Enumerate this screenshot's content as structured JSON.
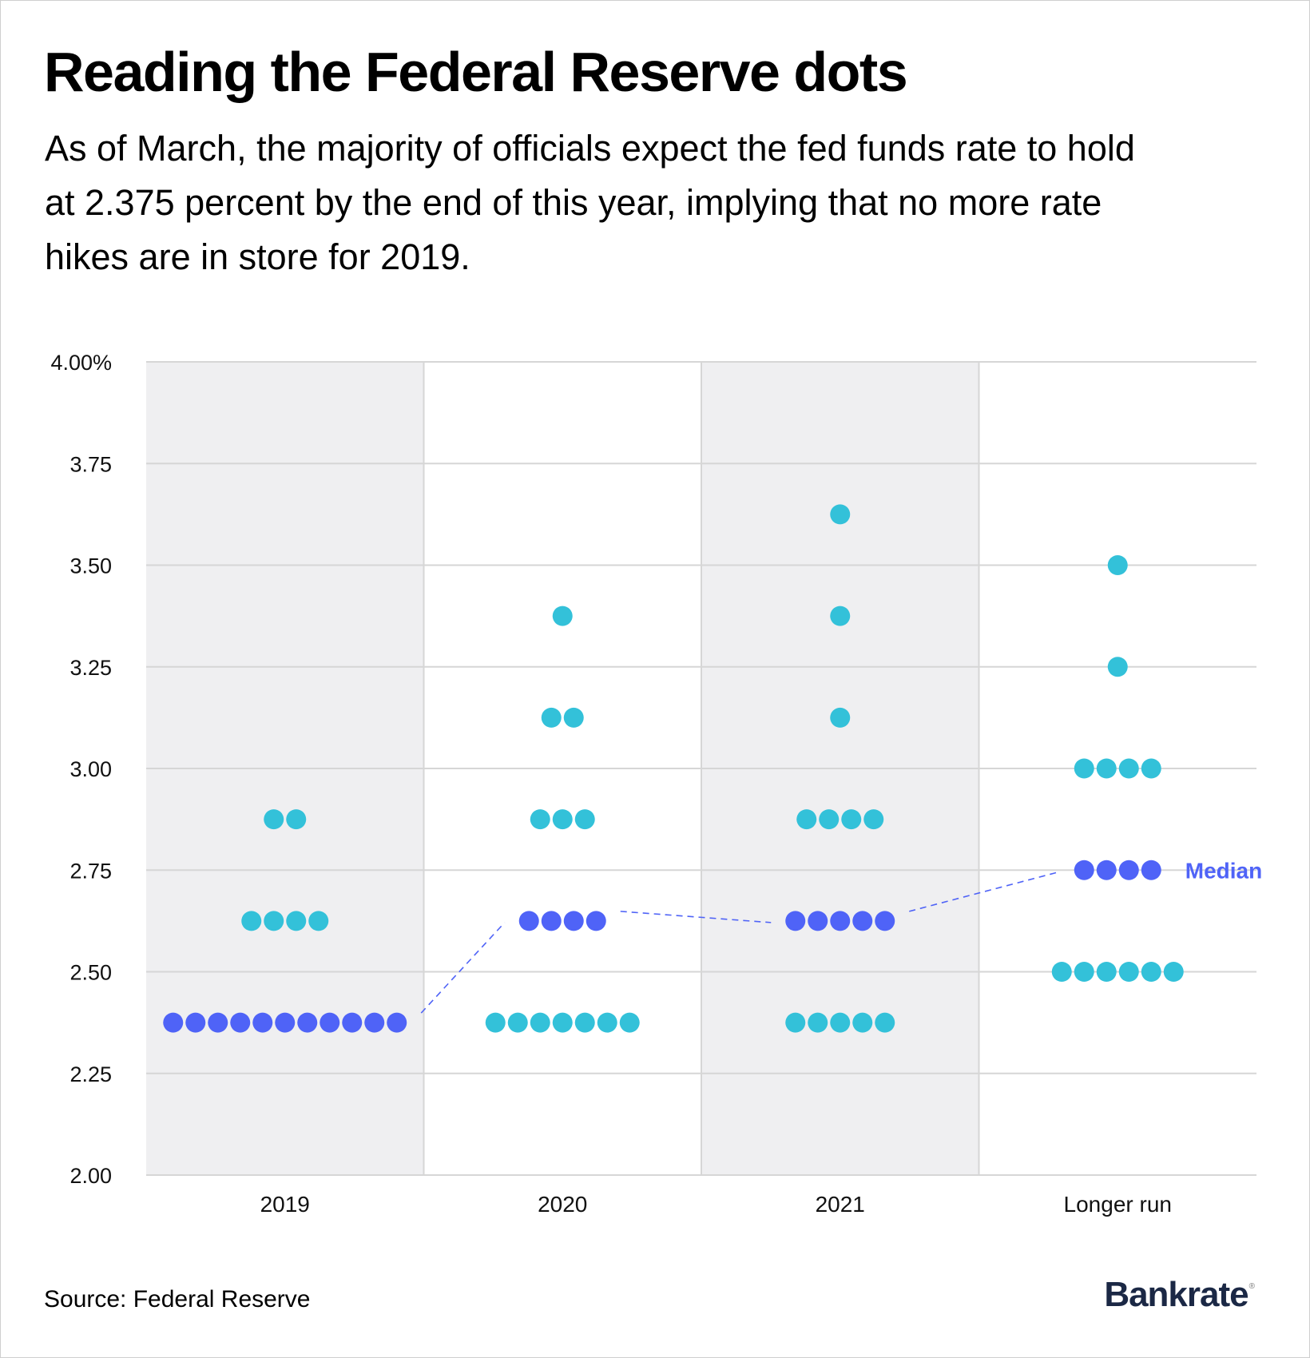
{
  "header": {
    "title": "Reading the Federal Reserve dots",
    "subtitle_lines": [
      "As of March, the majority of officials expect the fed funds rate to hold",
      "at 2.375 percent by the end of this year, implying that no more rate",
      "hikes are in store for 2019."
    ]
  },
  "footer": {
    "source": "Source: Federal Reserve",
    "logo": "Bankrate",
    "logo_mark": "®"
  },
  "colors": {
    "median_dot": "#4f63f7",
    "other_dot": "#33c1d9",
    "shaded_band": "#efeff1",
    "gridline": "#d6d6d6",
    "median_text": "#4f63f7"
  },
  "chart_data": {
    "type": "scatter",
    "subtype": "dot-plot",
    "title": "Reading the Federal Reserve dots",
    "xlabel": "",
    "ylabel": "",
    "ylim": [
      2.0,
      4.0
    ],
    "y_ticks": [
      2.0,
      2.25,
      2.5,
      2.75,
      3.0,
      3.25,
      3.5,
      3.75,
      4.0
    ],
    "y_tick_labels": [
      "2.00",
      "2.25",
      "2.50",
      "2.75",
      "3.00",
      "3.25",
      "3.50",
      "3.75",
      "4.00%"
    ],
    "grid": true,
    "categories": [
      "2019",
      "2020",
      "2021",
      "Longer run"
    ],
    "shaded_categories": [
      "2019",
      "2021"
    ],
    "series": [
      {
        "category": "2019",
        "median": 2.375,
        "rows": [
          {
            "rate": 2.875,
            "count": 2
          },
          {
            "rate": 2.625,
            "count": 4
          },
          {
            "rate": 2.375,
            "count": 11
          }
        ]
      },
      {
        "category": "2020",
        "median": 2.625,
        "rows": [
          {
            "rate": 3.375,
            "count": 1
          },
          {
            "rate": 3.125,
            "count": 2
          },
          {
            "rate": 2.875,
            "count": 3
          },
          {
            "rate": 2.625,
            "count": 4
          },
          {
            "rate": 2.375,
            "count": 7
          }
        ]
      },
      {
        "category": "2021",
        "median": 2.625,
        "rows": [
          {
            "rate": 3.625,
            "count": 1
          },
          {
            "rate": 3.375,
            "count": 1
          },
          {
            "rate": 3.125,
            "count": 1
          },
          {
            "rate": 2.875,
            "count": 4
          },
          {
            "rate": 2.625,
            "count": 5
          },
          {
            "rate": 2.375,
            "count": 5
          }
        ]
      },
      {
        "category": "Longer run",
        "median": 2.75,
        "rows": [
          {
            "rate": 3.5,
            "count": 1
          },
          {
            "rate": 3.25,
            "count": 1
          },
          {
            "rate": 3.0,
            "count": 4
          },
          {
            "rate": 2.75,
            "count": 4
          },
          {
            "rate": 2.5,
            "count": 6
          }
        ]
      }
    ],
    "annotations": [
      {
        "text": "Median",
        "category": "Longer run",
        "rate": 2.75
      }
    ],
    "median_line": "dashed"
  }
}
